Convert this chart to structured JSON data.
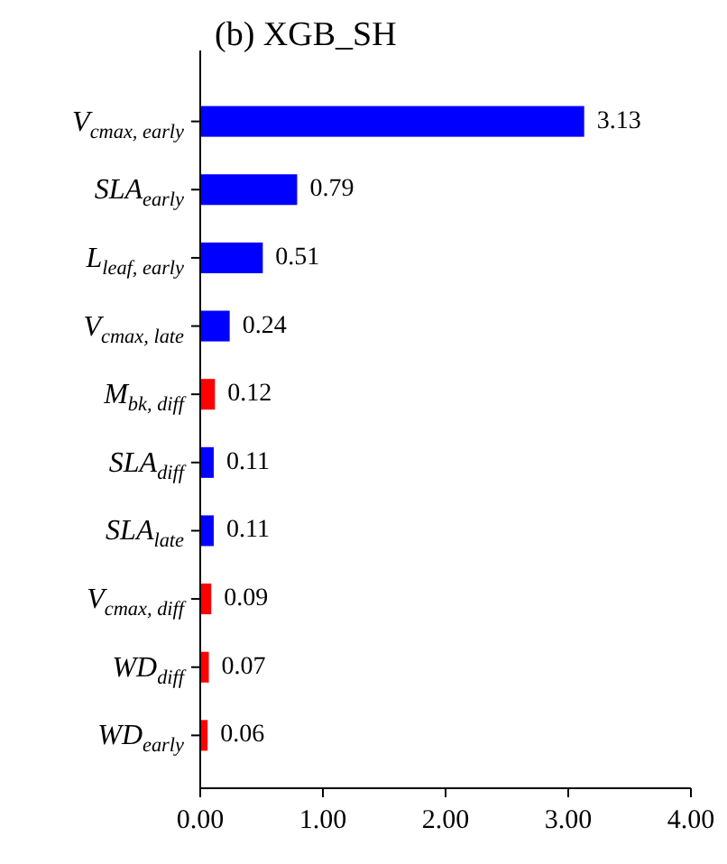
{
  "chart_data": {
    "type": "bar",
    "orientation": "horizontal",
    "title": "(b) XGB_SH",
    "categories": [
      "V$_{cmax, early}$",
      "SLA$_{early}$",
      "L$_{leaf, early}$",
      "V$_{cmax, late}$",
      "M$_{bk, diff}$",
      "SLA$_{diff}$",
      "SLA$_{late}$",
      "V$_{cmax, diff}$",
      "WD$_{diff}$",
      "WD$_{early}$"
    ],
    "values": [
      3.13,
      0.79,
      0.51,
      0.24,
      0.12,
      0.11,
      0.11,
      0.09,
      0.07,
      0.06
    ],
    "colors": [
      "#0000ff",
      "#0000ff",
      "#0000ff",
      "#0000ff",
      "#ff0000",
      "#0000ff",
      "#0000ff",
      "#ff0000",
      "#ff0000",
      "#ff0000"
    ],
    "xlim": [
      0,
      4
    ],
    "xticks": [
      {
        "value": 0,
        "label": "0.00"
      },
      {
        "value": 1,
        "label": "1.00"
      },
      {
        "value": 2,
        "label": "2.00"
      },
      {
        "value": 3,
        "label": "3.00"
      },
      {
        "value": 4,
        "label": "4.00"
      }
    ],
    "data_labels": true
  }
}
